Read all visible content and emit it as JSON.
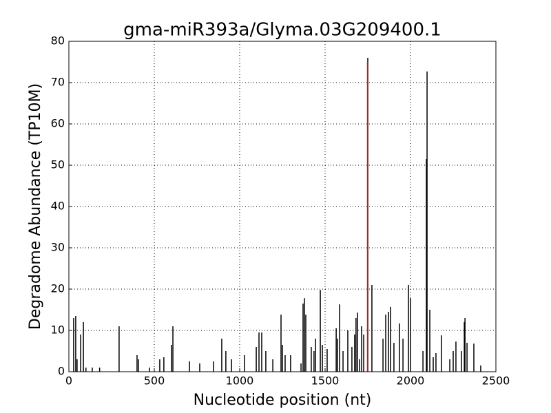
{
  "chart_data": {
    "type": "stem",
    "title": "gma-miR393a/Glyma.03G209400.1",
    "x_label": "Nucleotide position (nt)",
    "y_label": "Degradome Abundance (TP10M)",
    "xlim": [
      0,
      2500
    ],
    "xticks": [
      0,
      500,
      1000,
      1500,
      2000,
      2500
    ],
    "ylim": [
      0,
      80
    ],
    "yticks": [
      0,
      10,
      20,
      30,
      40,
      50,
      60,
      70,
      80
    ],
    "grid": true,
    "series": [
      {
        "color": "#000000",
        "x": [
          28,
          40,
          48,
          69,
          85,
          100,
          137,
          180,
          294,
          399,
          407,
          472,
          532,
          556,
          601,
          609,
          706,
          766,
          847,
          895,
          919,
          952,
          1028,
          1097,
          1113,
          1129,
          1153,
          1194,
          1242,
          1250,
          1266,
          1298,
          1359,
          1371,
          1379,
          1387,
          1419,
          1435,
          1444,
          1472,
          1484,
          1512,
          1565,
          1573,
          1585,
          1605,
          1633,
          1657,
          1673,
          1681,
          1690,
          1702,
          1714,
          1726,
          1750,
          1774,
          1839,
          1855,
          1871,
          1883,
          1903,
          1935,
          1956,
          1988,
          2000,
          2073,
          2093,
          2097,
          2113,
          2133,
          2149,
          2181,
          2230,
          2250,
          2266,
          2298,
          2315,
          2319,
          2331,
          2371,
          2411
        ],
        "values": [
          13,
          13.5,
          3,
          9,
          12,
          1,
          1,
          1,
          11,
          4,
          3,
          1,
          3,
          3.5,
          6.5,
          11,
          2.5,
          2,
          2.5,
          8,
          5,
          3,
          4,
          6,
          9.5,
          9.5,
          5,
          3,
          13.8,
          6.5,
          4,
          4,
          2,
          16.5,
          17.8,
          13.8,
          6,
          5,
          8,
          19.8,
          6.5,
          5.5,
          10.5,
          8,
          16.3,
          5,
          10,
          6,
          9,
          13,
          14.3,
          3,
          11,
          9,
          76,
          21,
          8,
          13.8,
          14.5,
          15.7,
          7,
          11.7,
          8,
          21,
          17.8,
          5,
          51.5,
          72.7,
          15,
          3.5,
          4.5,
          8.8,
          3,
          5,
          7.3,
          5,
          12,
          13,
          7,
          6.8,
          1.5
        ]
      },
      {
        "color": "#ff0000",
        "x": [
          1748
        ],
        "values": [
          75
        ]
      }
    ]
  }
}
